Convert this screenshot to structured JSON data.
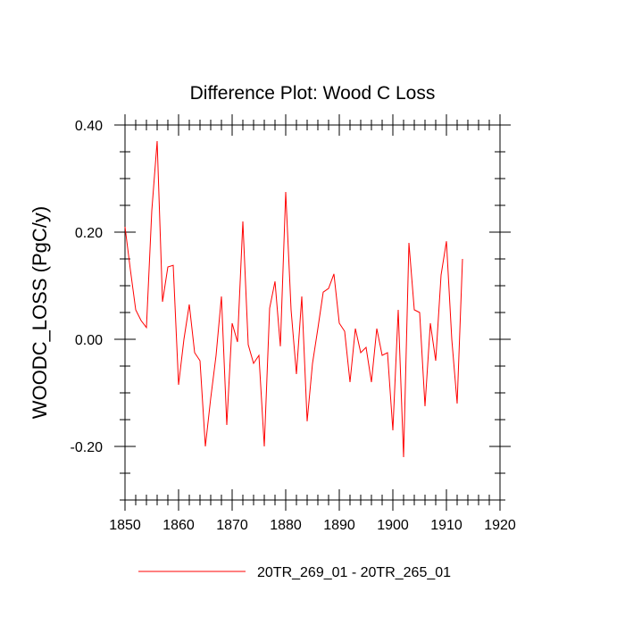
{
  "chart_data": {
    "type": "line",
    "title": "Difference Plot: Wood C Loss",
    "xlabel": "",
    "ylabel": "WOODC_LOSS  (PgC/y)",
    "xlim": [
      1850,
      1920
    ],
    "ylim": [
      -0.3,
      0.4
    ],
    "x_ticks": [
      1850,
      1860,
      1870,
      1880,
      1890,
      1900,
      1910,
      1920
    ],
    "x_tick_labels": [
      "1850",
      "1860",
      "1870",
      "1880",
      "1890",
      "1900",
      "1910",
      "1920"
    ],
    "y_ticks": [
      -0.2,
      0.0,
      0.2,
      0.4
    ],
    "y_tick_labels": [
      "-0.20",
      "0.00",
      "0.20",
      "0.40"
    ],
    "grid": false,
    "legend_position": "bottom",
    "series": [
      {
        "name": "20TR_269_01 - 20TR_265_01",
        "color": "#ff0000",
        "x": [
          1850,
          1851,
          1852,
          1853,
          1854,
          1855,
          1856,
          1857,
          1858,
          1859,
          1860,
          1861,
          1862,
          1863,
          1864,
          1865,
          1866,
          1867,
          1868,
          1869,
          1870,
          1871,
          1872,
          1873,
          1874,
          1875,
          1876,
          1877,
          1878,
          1879,
          1880,
          1881,
          1882,
          1883,
          1884,
          1885,
          1886,
          1887,
          1888,
          1889,
          1890,
          1891,
          1892,
          1893,
          1894,
          1895,
          1896,
          1897,
          1898,
          1899,
          1900,
          1901,
          1902,
          1903,
          1904,
          1905,
          1906,
          1907,
          1908,
          1909,
          1910,
          1911,
          1912,
          1913
        ],
        "values": [
          0.21,
          0.13,
          0.055,
          0.035,
          0.022,
          0.24,
          0.37,
          0.07,
          0.135,
          0.138,
          -0.085,
          0.0,
          0.065,
          -0.025,
          -0.04,
          -0.2,
          -0.11,
          -0.03,
          0.08,
          -0.16,
          0.03,
          -0.005,
          0.22,
          -0.01,
          -0.045,
          -0.03,
          -0.2,
          0.058,
          0.108,
          -0.013,
          0.275,
          0.055,
          -0.065,
          0.08,
          -0.153,
          -0.045,
          0.02,
          0.088,
          0.095,
          0.122,
          0.03,
          0.015,
          -0.08,
          0.02,
          -0.025,
          -0.015,
          -0.08,
          0.02,
          -0.03,
          -0.025,
          -0.17,
          0.055,
          -0.22,
          0.18,
          0.055,
          0.05,
          -0.125,
          0.03,
          -0.04,
          0.12,
          0.183,
          0.0,
          -0.12,
          0.15
        ]
      }
    ]
  }
}
